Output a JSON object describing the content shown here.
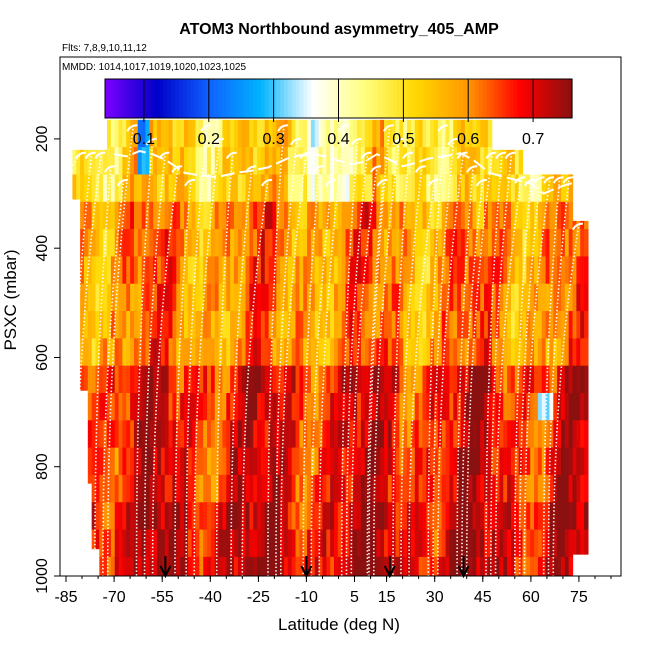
{
  "chart_data": {
    "type": "heatmap",
    "title": "ATOM3 Northbound asymmetry_405_AMP",
    "subtitle_flights": "Flts: 7,8,9,10,11,12",
    "subtitle_dates": "MMDD: 1014,1017,1019,1020,1023,1025",
    "xlabel": "Latitude (deg N)",
    "ylabel": "PSXC (mbar)",
    "xlim": [
      -85,
      85
    ],
    "ylim": [
      1000,
      50
    ],
    "x_tick_labels": [
      "-85",
      "-70",
      "-55",
      "-40",
      "-25",
      "-10",
      "5",
      "15",
      "30",
      "45",
      "60",
      "75"
    ],
    "y_tick_labels": [
      "200",
      "400",
      "600",
      "800",
      "1000"
    ],
    "colorbar": {
      "range": [
        0.04,
        0.76
      ],
      "tick_labels": [
        "0.1",
        "0.2",
        "0.3",
        "0.4",
        "0.5",
        "0.6",
        "0.7"
      ],
      "colors": [
        "#7a00ff",
        "#0000c8",
        "#1060ff",
        "#00b4ff",
        "#ffffff",
        "#ffff80",
        "#ffd700",
        "#ff9600",
        "#ff0000",
        "#8b1010"
      ]
    },
    "profile_markers_latitude": [
      -54,
      -10,
      16,
      39
    ],
    "value_summary": {
      "upper_troposphere_150_300mbar": 0.52,
      "mid_troposphere_300_600mbar": 0.6,
      "lower_troposphere_600_1000mbar": 0.68,
      "local_min_near_minus62_185mbar": 0.2,
      "local_min_near_64_650mbar": 0.3
    }
  }
}
